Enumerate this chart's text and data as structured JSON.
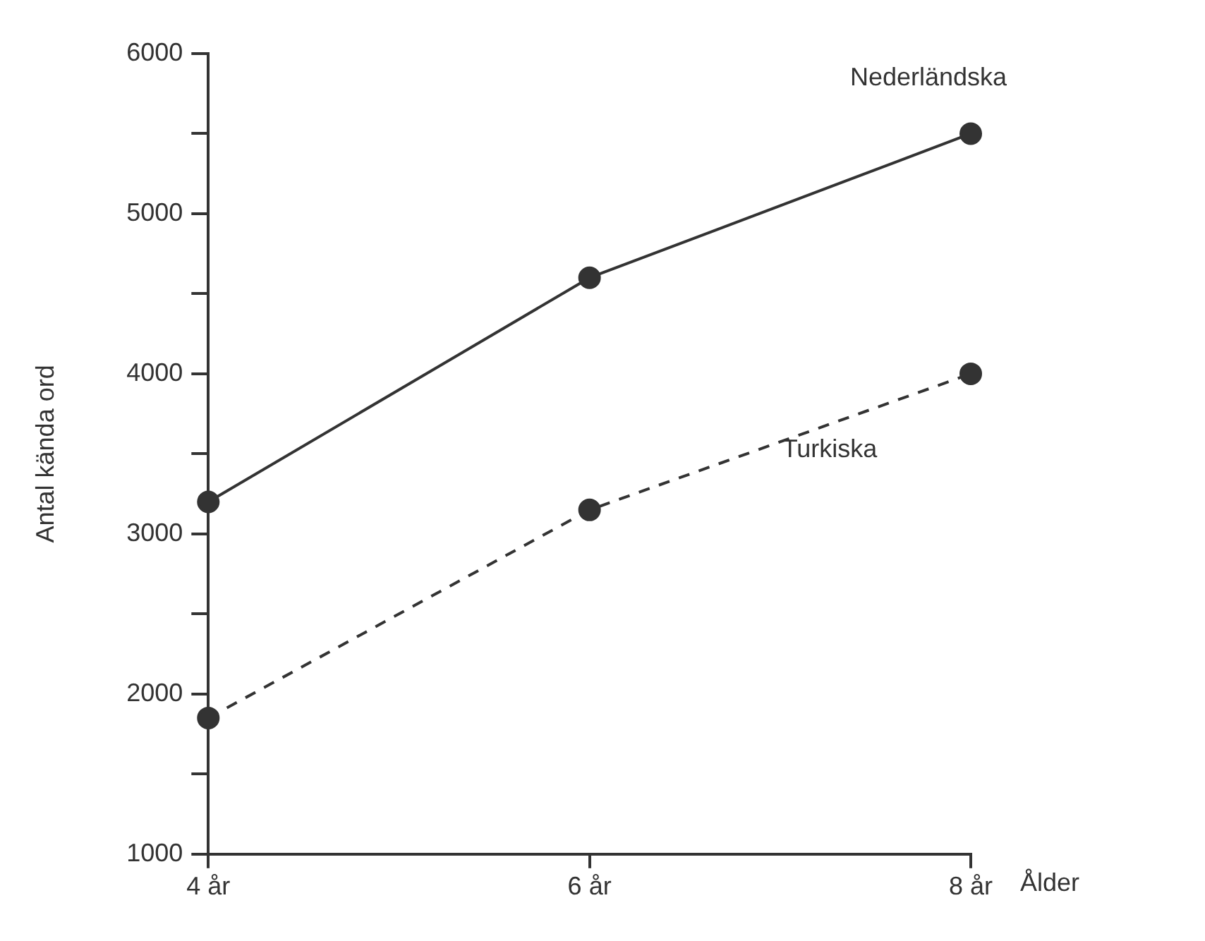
{
  "chart_data": {
    "type": "line",
    "xlabel": "Ålder",
    "ylabel": "Antal kända ord",
    "categories": [
      "4 år",
      "6 år",
      "8 år"
    ],
    "series": [
      {
        "name": "Nederländska",
        "color": "#333333",
        "values": [
          3200,
          4600,
          5500
        ],
        "line_style": "solid"
      },
      {
        "name": "Turkiska",
        "color": "#333333",
        "values": [
          1850,
          3150,
          4000
        ],
        "line_style": "dashed"
      }
    ],
    "ylim": [
      1000,
      6000
    ],
    "yticks": [
      1000,
      {
        "value": 1500,
        "label": null
      },
      2000,
      {
        "value": 2500,
        "label": null
      },
      3000,
      {
        "value": 3500,
        "label": null
      },
      4000,
      {
        "value": 4500,
        "label": null
      },
      5000,
      {
        "value": 5500,
        "label": null
      },
      6000
    ],
    "grid": false,
    "legend": false,
    "marker": "circle"
  }
}
